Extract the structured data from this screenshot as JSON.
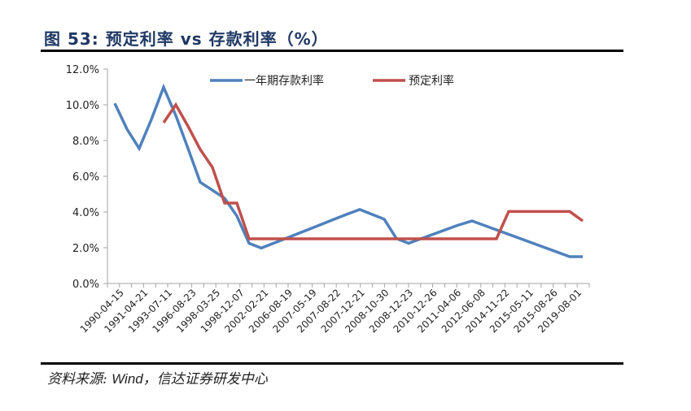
{
  "header": {
    "title": "图 53: 预定利率 vs 存款利率（%）"
  },
  "footer": {
    "source_prefix": "资料来源: ",
    "source_wind": "Wind",
    "source_suffix": "，信达证券研发中心"
  },
  "colors": {
    "deposit": "#4f81bd",
    "preset": "#c0504d",
    "title": "#1f3864",
    "axis": "#a6a6a6"
  },
  "chart_data": {
    "type": "line",
    "title": "预定利率 vs 存款利率（%）",
    "xlabel": "",
    "ylabel": "",
    "ylim": [
      0,
      12
    ],
    "yticks": [
      "0.0%",
      "2.0%",
      "4.0%",
      "6.0%",
      "8.0%",
      "10.0%",
      "12.0%"
    ],
    "grid": false,
    "legend_position": "top",
    "categories": [
      "1990-04-15",
      "1991-04-21",
      "1993-07-11",
      "1996-08-23",
      "1998-03-25",
      "1998-12-07",
      "2002-02-21",
      "2006-08-19",
      "2007-05-19",
      "2007-08-22",
      "2007-12-21",
      "2008-10-30",
      "2008-12-23",
      "2010-12-26",
      "2011-04-06",
      "2012-06-08",
      "2014-11-22",
      "2015-05-11",
      "2015-08-26",
      "2019-08-01"
    ],
    "x_positions": [
      141,
      156,
      171,
      186,
      201,
      216,
      231,
      246,
      261,
      276,
      291,
      306,
      321,
      336,
      351,
      366,
      381,
      396,
      411,
      426,
      442,
      457,
      472,
      487,
      502,
      517,
      532,
      547,
      562,
      580,
      595,
      610,
      625,
      640,
      655,
      670,
      685,
      700,
      716
    ],
    "series": [
      {
        "name": "一年期存款利率",
        "color": "#4f81bd",
        "values": [
          10.08,
          8.64,
          7.56,
          9.18,
          10.98,
          9.4,
          7.56,
          5.67,
          5.22,
          4.77,
          3.78,
          2.25,
          1.98,
          2.25,
          2.52,
          2.79,
          3.06,
          3.33,
          3.6,
          3.87,
          4.14,
          3.87,
          3.6,
          2.52,
          2.25,
          2.5,
          2.75,
          3.0,
          3.25,
          3.5,
          3.25,
          3.0,
          2.75,
          2.5,
          2.25,
          2.0,
          1.75,
          1.5,
          1.5
        ]
      },
      {
        "name": "预定利率",
        "color": "#c0504d",
        "values": [
          null,
          null,
          null,
          null,
          9.0,
          10.0,
          8.8,
          7.5,
          6.5,
          4.5,
          4.5,
          2.5,
          2.5,
          2.5,
          2.5,
          2.5,
          2.5,
          2.5,
          2.5,
          2.5,
          2.5,
          2.5,
          2.5,
          2.5,
          2.5,
          2.5,
          2.5,
          2.5,
          2.5,
          2.5,
          2.5,
          2.5,
          4.025,
          4.025,
          4.025,
          4.025,
          4.025,
          4.025,
          3.5
        ]
      }
    ]
  }
}
